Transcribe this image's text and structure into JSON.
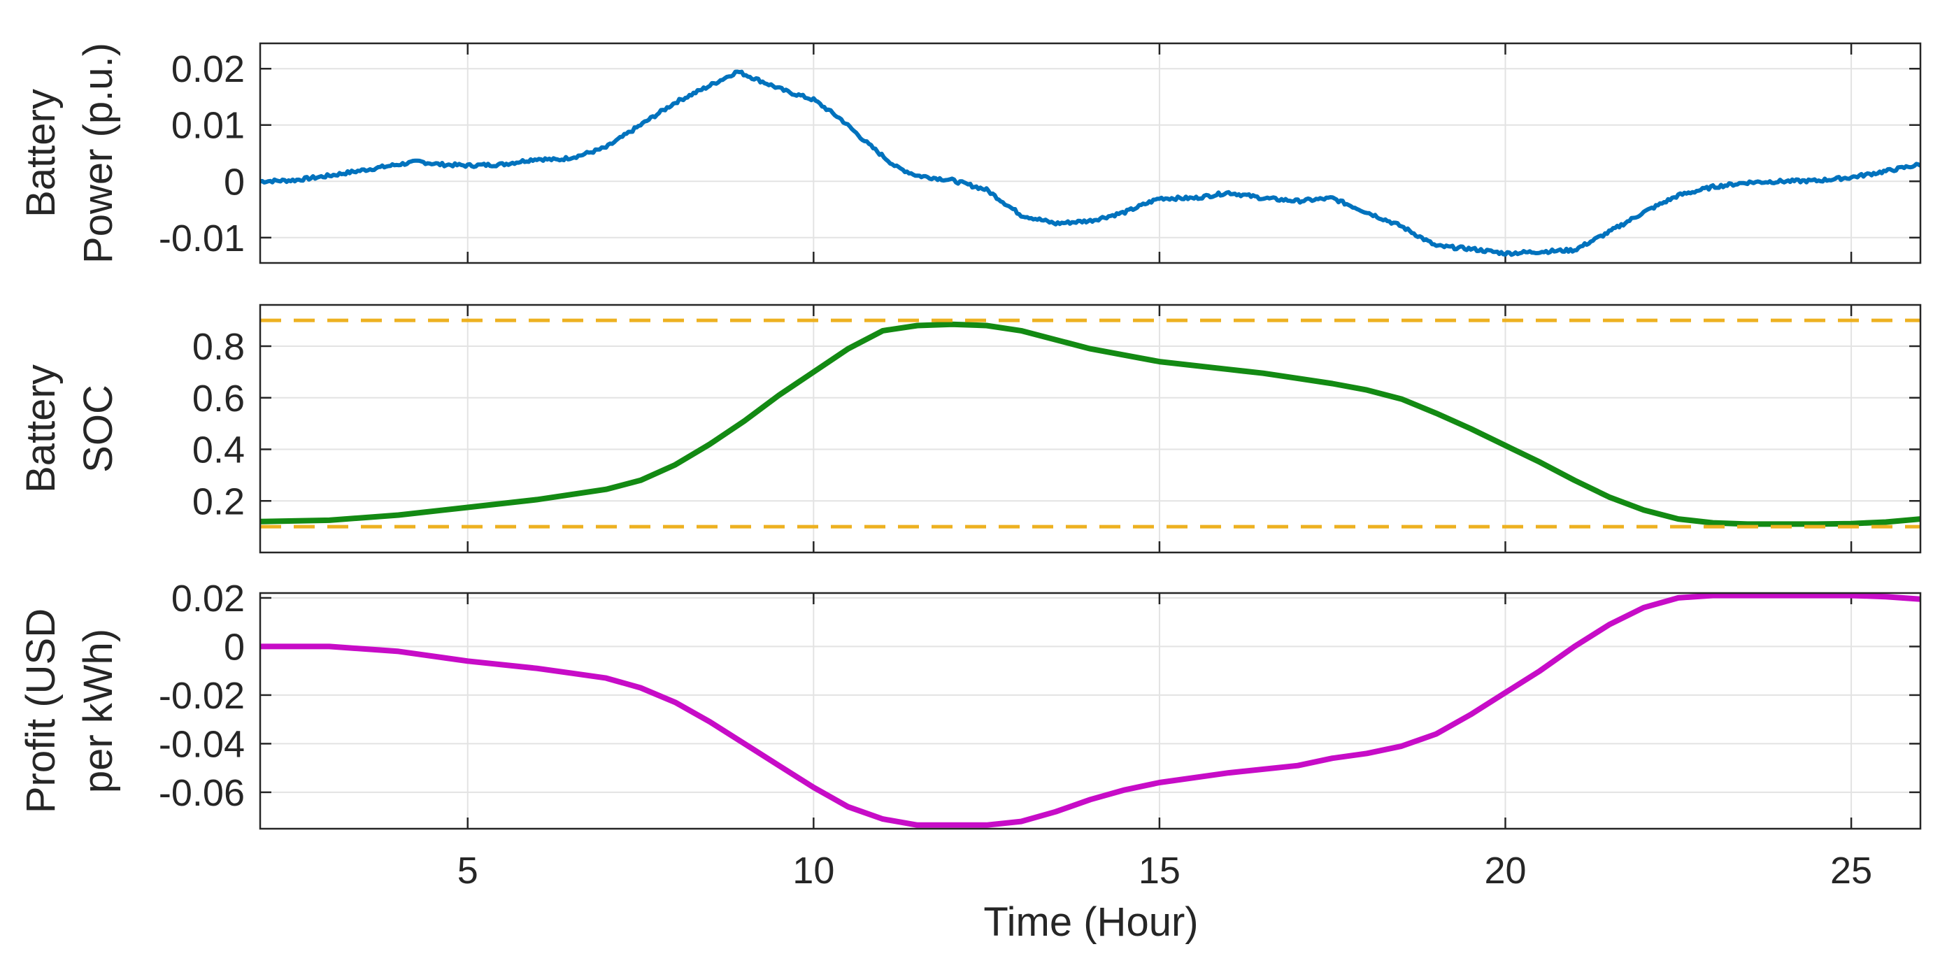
{
  "chart_data": {
    "type": "line",
    "xlabel": "Time (Hour)",
    "xlim": [
      2,
      26
    ],
    "xticks": [
      5,
      10,
      15,
      20,
      25
    ],
    "xtick_labels": [
      "5",
      "10",
      "15",
      "20",
      "25"
    ],
    "grid": true,
    "panels": [
      {
        "ylabel_lines": [
          "Battery",
          "Power (p.u.)"
        ],
        "ylim": [
          -0.0145,
          0.0245
        ],
        "yticks": [
          0.02,
          0.01,
          0,
          -0.01
        ],
        "ytick_labels": [
          "0.02",
          "0.01",
          "0",
          "-0.01"
        ],
        "series": [
          {
            "color": "#0072BD",
            "style": "solid",
            "noisy": true,
            "x": [
              2.0,
              2.5,
              3.0,
              3.5,
              4.0,
              4.3,
              4.6,
              5.0,
              5.5,
              6.0,
              6.3,
              6.6,
              7.0,
              7.5,
              8.0,
              8.5,
              8.9,
              9.2,
              9.6,
              10.0,
              10.4,
              10.8,
              11.2,
              11.5,
              12.0,
              12.5,
              13.0,
              13.5,
              14.0,
              14.5,
              15.0,
              15.5,
              16.0,
              16.5,
              17.0,
              17.5,
              18.0,
              18.5,
              19.0,
              19.5,
              20.0,
              20.5,
              21.0,
              21.5,
              22.0,
              22.5,
              23.0,
              23.5,
              24.0,
              24.5,
              25.0,
              25.5,
              26.0
            ],
            "y": [
              0.0,
              0.0002,
              0.001,
              0.002,
              0.003,
              0.0035,
              0.003,
              0.0028,
              0.003,
              0.004,
              0.0038,
              0.0045,
              0.006,
              0.01,
              0.014,
              0.017,
              0.0195,
              0.018,
              0.016,
              0.0145,
              0.011,
              0.0065,
              0.0025,
              0.001,
              0.0002,
              -0.0015,
              -0.006,
              -0.0075,
              -0.007,
              -0.0055,
              -0.003,
              -0.003,
              -0.002,
              -0.003,
              -0.0035,
              -0.003,
              -0.0055,
              -0.008,
              -0.0115,
              -0.012,
              -0.0128,
              -0.0125,
              -0.0122,
              -0.009,
              -0.0055,
              -0.0025,
              -0.001,
              -0.0002,
              0.0,
              0.0001,
              0.0007,
              0.0018,
              0.003
            ]
          }
        ]
      },
      {
        "ylabel_lines": [
          "Battery",
          "SOC"
        ],
        "ylim": [
          0.0,
          0.96
        ],
        "yticks": [
          0.8,
          0.6,
          0.4,
          0.2
        ],
        "ytick_labels": [
          "0.8",
          "0.6",
          "0.4",
          "0.2"
        ],
        "series": [
          {
            "color": "#138A13",
            "style": "solid",
            "x": [
              2.0,
              3.0,
              4.0,
              5.0,
              6.0,
              7.0,
              7.5,
              8.0,
              8.5,
              9.0,
              9.5,
              10.0,
              10.5,
              11.0,
              11.5,
              12.0,
              12.5,
              13.0,
              14.0,
              15.0,
              16.0,
              16.5,
              17.0,
              17.5,
              18.0,
              18.5,
              19.0,
              19.5,
              20.0,
              20.5,
              21.0,
              21.5,
              22.0,
              22.5,
              23.0,
              23.5,
              24.0,
              24.5,
              25.0,
              25.5,
              26.0
            ],
            "y": [
              0.12,
              0.125,
              0.145,
              0.175,
              0.205,
              0.245,
              0.28,
              0.34,
              0.42,
              0.51,
              0.61,
              0.7,
              0.79,
              0.86,
              0.88,
              0.885,
              0.88,
              0.86,
              0.79,
              0.74,
              0.71,
              0.695,
              0.675,
              0.655,
              0.63,
              0.595,
              0.54,
              0.48,
              0.415,
              0.35,
              0.28,
              0.215,
              0.165,
              0.13,
              0.115,
              0.11,
              0.11,
              0.11,
              0.112,
              0.118,
              0.13
            ]
          },
          {
            "color": "#EDB120",
            "style": "dashed",
            "x": [
              2,
              26
            ],
            "y": [
              0.9,
              0.9
            ]
          },
          {
            "color": "#EDB120",
            "style": "dashed",
            "x": [
              2,
              26
            ],
            "y": [
              0.1,
              0.1
            ]
          }
        ]
      },
      {
        "ylabel_lines": [
          "Profit (USD",
          "per kWh)"
        ],
        "ylim": [
          -0.075,
          0.022
        ],
        "yticks": [
          0.02,
          0,
          -0.02,
          -0.04,
          -0.06
        ],
        "ytick_labels": [
          "0.02",
          "0",
          "-0.02",
          "-0.04",
          "-0.06"
        ],
        "series": [
          {
            "color": "#C70CC7",
            "style": "solid",
            "x": [
              2.0,
              3.0,
              4.0,
              5.0,
              6.0,
              6.5,
              7.0,
              7.5,
              8.0,
              8.5,
              9.0,
              9.5,
              10.0,
              10.5,
              11.0,
              11.5,
              12.0,
              12.5,
              13.0,
              13.5,
              14.0,
              14.5,
              15.0,
              16.0,
              17.0,
              17.5,
              18.0,
              18.5,
              19.0,
              19.5,
              20.0,
              20.5,
              21.0,
              21.5,
              22.0,
              22.5,
              23.0,
              24.0,
              25.0,
              25.5,
              26.0
            ],
            "y": [
              0.0,
              0.0,
              -0.002,
              -0.006,
              -0.009,
              -0.011,
              -0.013,
              -0.017,
              -0.023,
              -0.031,
              -0.04,
              -0.049,
              -0.058,
              -0.066,
              -0.071,
              -0.0735,
              -0.0735,
              -0.0735,
              -0.072,
              -0.068,
              -0.063,
              -0.059,
              -0.056,
              -0.052,
              -0.049,
              -0.046,
              -0.044,
              -0.041,
              -0.036,
              -0.028,
              -0.019,
              -0.01,
              0.0,
              0.009,
              0.016,
              0.02,
              0.021,
              0.021,
              0.021,
              0.0205,
              0.0195
            ]
          }
        ]
      }
    ]
  }
}
